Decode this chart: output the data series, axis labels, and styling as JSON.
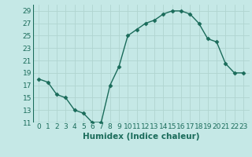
{
  "x": [
    0,
    1,
    2,
    3,
    4,
    5,
    6,
    7,
    8,
    9,
    10,
    11,
    12,
    13,
    14,
    15,
    16,
    17,
    18,
    19,
    20,
    21,
    22,
    23
  ],
  "y": [
    18,
    17.5,
    15.5,
    15,
    13,
    12.5,
    11,
    11,
    17,
    20,
    25,
    26,
    27,
    27.5,
    28.5,
    29,
    29,
    28.5,
    27,
    24.5,
    24,
    20.5,
    19,
    19
  ],
  "line_color": "#1a6b5a",
  "marker_color": "#1a6b5a",
  "bg_color": "#c5e8e6",
  "grid_color": "#b0d4d0",
  "xlabel": "Humidex (Indice chaleur)",
  "ylim_min": 11,
  "ylim_max": 30,
  "yticks": [
    11,
    13,
    15,
    17,
    19,
    21,
    23,
    25,
    27,
    29
  ],
  "xticks": [
    0,
    1,
    2,
    3,
    4,
    5,
    6,
    7,
    8,
    9,
    10,
    11,
    12,
    13,
    14,
    15,
    16,
    17,
    18,
    19,
    20,
    21,
    22,
    23
  ],
  "font_color": "#1a6b5a",
  "tick_fontsize": 6.5,
  "xlabel_fontsize": 7.5,
  "marker_size": 2.5,
  "line_width": 1.0,
  "marker": "D"
}
